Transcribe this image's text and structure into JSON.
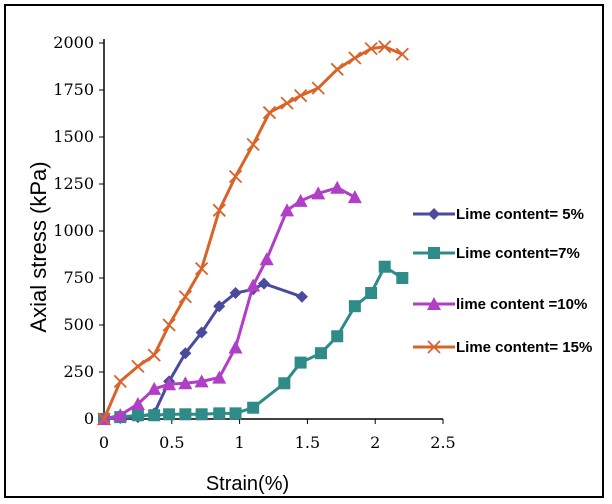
{
  "chart_data": {
    "type": "line",
    "title": "",
    "xlabel": "Strain(%)",
    "ylabel": "Axial stress (kPa)",
    "xlim": [
      0,
      2.5
    ],
    "ylim": [
      0,
      2000
    ],
    "xticks": [
      0,
      0.5,
      1,
      1.5,
      2,
      2.5
    ],
    "xtick_labels": [
      "0",
      "0.5",
      "1",
      "1.5",
      "2",
      "2.5"
    ],
    "yticks": [
      0,
      250,
      500,
      750,
      1000,
      1250,
      1500,
      1750,
      2000
    ],
    "ytick_labels": [
      "0",
      "250",
      "500",
      "750",
      "1000",
      "1250",
      "1500",
      "1750",
      "2000"
    ],
    "grid": false,
    "legend_position": "right",
    "series": [
      {
        "name": "Lime content= 5%",
        "color": "#4a4b9c",
        "marker": "diamond",
        "x": [
          0,
          0.12,
          0.25,
          0.37,
          0.48,
          0.6,
          0.72,
          0.85,
          0.97,
          1.1,
          1.18,
          1.46
        ],
        "y": [
          0,
          5,
          10,
          30,
          200,
          350,
          460,
          600,
          670,
          690,
          720,
          650
        ]
      },
      {
        "name": "Lime content=7%",
        "color": "#2e8b88",
        "marker": "square",
        "x": [
          0,
          0.12,
          0.25,
          0.37,
          0.48,
          0.6,
          0.72,
          0.85,
          0.97,
          1.1,
          1.33,
          1.45,
          1.6,
          1.72,
          1.85,
          1.97,
          2.07,
          2.2
        ],
        "y": [
          0,
          10,
          20,
          20,
          25,
          25,
          25,
          30,
          30,
          60,
          190,
          300,
          350,
          440,
          600,
          670,
          810,
          750
        ]
      },
      {
        "name": "lime content =10%",
        "color": "#b03ec6",
        "marker": "triangle",
        "x": [
          0,
          0.12,
          0.25,
          0.37,
          0.48,
          0.6,
          0.72,
          0.85,
          0.97,
          1.1,
          1.2,
          1.35,
          1.45,
          1.58,
          1.72,
          1.85
        ],
        "y": [
          0,
          20,
          80,
          160,
          185,
          190,
          200,
          220,
          380,
          710,
          850,
          1110,
          1160,
          1200,
          1230,
          1180
        ]
      },
      {
        "name": "Lime content= 15%",
        "color": "#d8642a",
        "marker": "x",
        "x": [
          0,
          0.12,
          0.25,
          0.37,
          0.48,
          0.6,
          0.72,
          0.85,
          0.97,
          1.1,
          1.22,
          1.35,
          1.45,
          1.58,
          1.72,
          1.85,
          1.97,
          2.07,
          2.2
        ],
        "y": [
          0,
          200,
          280,
          340,
          500,
          650,
          800,
          1110,
          1290,
          1460,
          1630,
          1680,
          1720,
          1760,
          1860,
          1920,
          1970,
          1980,
          1940
        ]
      }
    ]
  }
}
